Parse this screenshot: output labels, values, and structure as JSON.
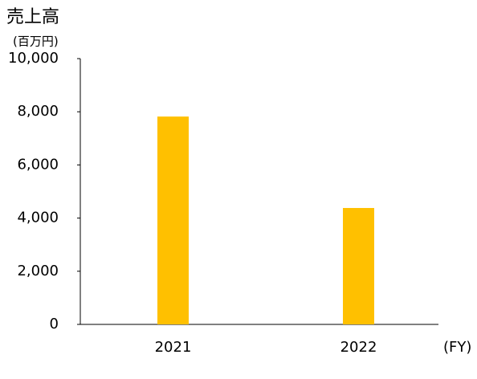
{
  "chart_data": {
    "type": "bar",
    "title": "売上高",
    "y_unit": "(百万円)",
    "x_label": "(FY)",
    "categories": [
      "2021",
      "2022"
    ],
    "values": [
      7820,
      4380
    ],
    "color": "#ffc000",
    "ylim": [
      0,
      10000
    ],
    "yticks": [
      0,
      {
        "value": 2000,
        "label": "2,000"
      },
      {
        "value": 4000,
        "label": "4,000"
      },
      {
        "value": 6000,
        "label": "6,000"
      },
      {
        "value": 8000,
        "label": "8,000"
      },
      {
        "value": 10000,
        "label": "10,000"
      }
    ],
    "grid": false
  }
}
